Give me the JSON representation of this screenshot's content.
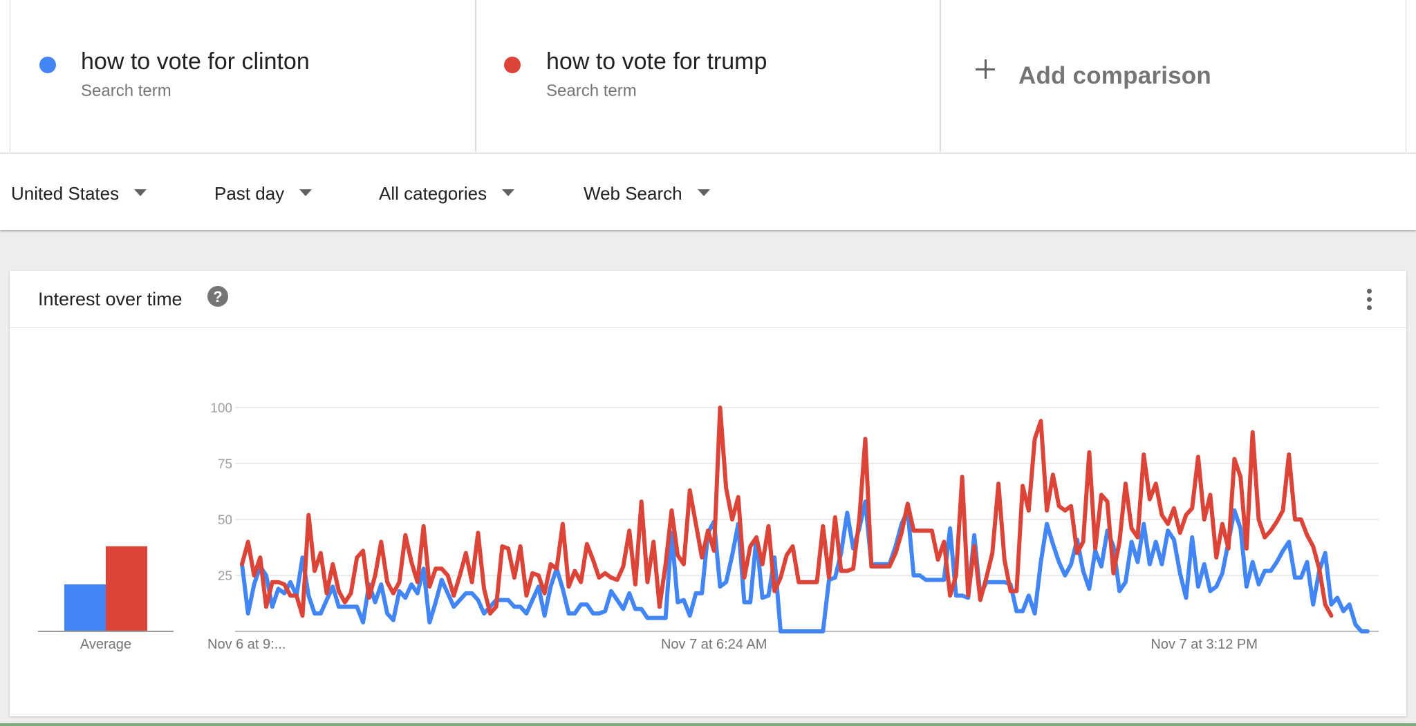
{
  "compare": {
    "terms": [
      {
        "name": "how to vote for clinton",
        "type": "Search term",
        "color": "#4285f4"
      },
      {
        "name": "how to vote for trump",
        "type": "Search term",
        "color": "#db4437"
      }
    ],
    "add_label": "Add comparison"
  },
  "filters": {
    "region": "United States",
    "period": "Past day",
    "category": "All categories",
    "property": "Web Search"
  },
  "card": {
    "title": "Interest over time",
    "help_glyph": "?"
  },
  "chart_data": {
    "type": "line",
    "title": "Interest over time",
    "y_ticks": [
      25,
      50,
      75,
      100
    ],
    "ylim": [
      0,
      100
    ],
    "grid": true,
    "x_tick_labels": [
      {
        "index": 0,
        "label": "Nov 6 at 9:..."
      },
      {
        "index": 78,
        "label": "Nov 7 at 6:24 AM"
      },
      {
        "index": 159,
        "label": "Nov 7 at 3:12 PM"
      }
    ],
    "average": {
      "label": "Average",
      "values": [
        21,
        38
      ]
    },
    "series": [
      {
        "name": "how to vote for clinton",
        "color": "#4285f4",
        "values": [
          30,
          8,
          21,
          29,
          25,
          11,
          19,
          17,
          22,
          16,
          33,
          16,
          8,
          8,
          14,
          20,
          11,
          11,
          11,
          11,
          4,
          21,
          13,
          21,
          8,
          5,
          18,
          15,
          21,
          17,
          28,
          4,
          13,
          23,
          17,
          11,
          14,
          17,
          17,
          14,
          8,
          11,
          14,
          14,
          14,
          11,
          11,
          8,
          14,
          20,
          7,
          20,
          28,
          19,
          8,
          8,
          12,
          12,
          8,
          8,
          9,
          18,
          14,
          10,
          17,
          10,
          10,
          6,
          6,
          6,
          6,
          44,
          13,
          14,
          7,
          17,
          17,
          44,
          49,
          20,
          22,
          34,
          48,
          13,
          13,
          42,
          15,
          16,
          33,
          0,
          0,
          0,
          0,
          0,
          0,
          0,
          0,
          23,
          24,
          35,
          53,
          37,
          46,
          58,
          30,
          30,
          30,
          30,
          38,
          48,
          54,
          25,
          25,
          23,
          23,
          23,
          23,
          46,
          16,
          16,
          15,
          43,
          16,
          22,
          22,
          22,
          22,
          21,
          9,
          9,
          16,
          8,
          31,
          48,
          39,
          31,
          25,
          30,
          41,
          27,
          19,
          36,
          29,
          45,
          38,
          18,
          22,
          40,
          31,
          48,
          30,
          40,
          30,
          45,
          41,
          26,
          15,
          42,
          20,
          30,
          18,
          20,
          26,
          40,
          54,
          46,
          20,
          31,
          21,
          27,
          27,
          31,
          36,
          40,
          24,
          24,
          31,
          12,
          27,
          35,
          12,
          15,
          9,
          12,
          3,
          0,
          0
        ]
      },
      {
        "name": "how to vote for trump",
        "color": "#db4437",
        "values": [
          30,
          40,
          25,
          33,
          11,
          22,
          22,
          21,
          16,
          16,
          7,
          52,
          27,
          35,
          17,
          30,
          18,
          13,
          17,
          33,
          36,
          15,
          25,
          40,
          22,
          17,
          22,
          43,
          31,
          22,
          47,
          20,
          28,
          28,
          25,
          16,
          25,
          35,
          22,
          44,
          19,
          8,
          11,
          38,
          37,
          24,
          38,
          16,
          26,
          25,
          17,
          30,
          28,
          48,
          20,
          27,
          22,
          39,
          32,
          24,
          26,
          24,
          23,
          29,
          45,
          21,
          58,
          22,
          40,
          11,
          30,
          54,
          34,
          30,
          63,
          48,
          33,
          45,
          36,
          100,
          64,
          50,
          60,
          24,
          38,
          42,
          30,
          47,
          18,
          24,
          34,
          38,
          22,
          22,
          22,
          22,
          47,
          24,
          51,
          27,
          27,
          28,
          50,
          86,
          29,
          29,
          29,
          29,
          35,
          44,
          57,
          45,
          45,
          45,
          45,
          32,
          40,
          16,
          25,
          69,
          16,
          38,
          14,
          24,
          35,
          66,
          32,
          18,
          18,
          65,
          54,
          86,
          94,
          54,
          70,
          56,
          54,
          56,
          35,
          40,
          80,
          37,
          61,
          58,
          26,
          40,
          66,
          46,
          42,
          79,
          59,
          66,
          52,
          48,
          55,
          44,
          52,
          55,
          78,
          50,
          61,
          33,
          48,
          37,
          77,
          69,
          37,
          89,
          50,
          42,
          45,
          49,
          54,
          79,
          50,
          50,
          43,
          38,
          28,
          12,
          7
        ]
      }
    ]
  }
}
